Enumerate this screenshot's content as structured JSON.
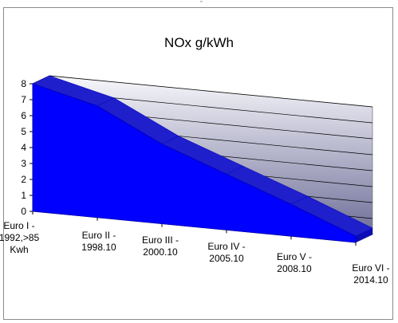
{
  "chart_data": {
    "type": "area",
    "title": "NOx g/kWh",
    "xlabel": "",
    "ylabel": "",
    "categories": [
      [
        "Euro I -",
        "1992,>85",
        "Kwh"
      ],
      [
        "Euro II -",
        "1998.10"
      ],
      [
        "Euro III -",
        "2000.10"
      ],
      [
        "Euro IV -",
        "2005.10"
      ],
      [
        "Euro V -",
        "2008.10"
      ],
      [
        "Euro VI -",
        "2014.10"
      ]
    ],
    "values": [
      8.0,
      7.0,
      5.0,
      3.5,
      2.0,
      0.4
    ],
    "yticks": [
      0,
      1,
      2,
      3,
      4,
      5,
      6,
      7,
      8
    ],
    "ylim": [
      0,
      8
    ],
    "grid": true,
    "legend": "none",
    "style": "3d",
    "colors": {
      "fill": "#0000ff",
      "side": "#0b0bb8",
      "top": "#1f1fcc",
      "wall_top": "#f8f8fc",
      "wall_bottom": "#6e6e98",
      "floor": "#8f92d4",
      "gridline": "#000000"
    }
  }
}
